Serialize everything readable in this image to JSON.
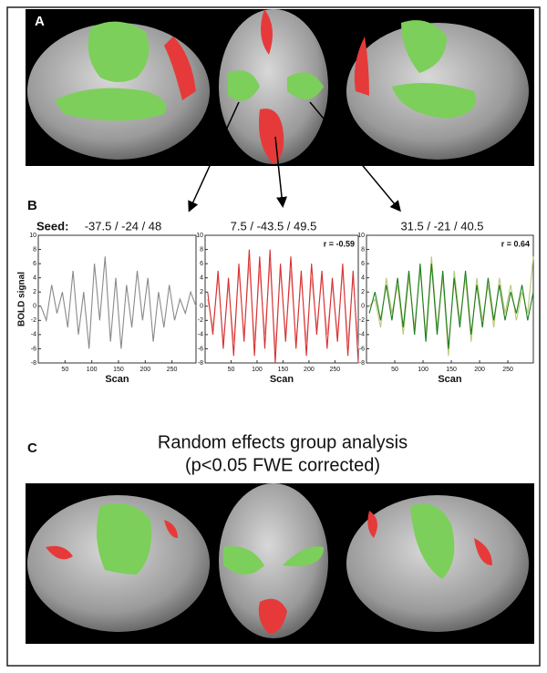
{
  "labels": [
    "A",
    "B",
    "C"
  ],
  "seed_prefix": "Seed:",
  "panel_c_title": [
    "Random effects group analysis",
    "(p<0.05 FWE corrected)"
  ],
  "chart_data": [
    {
      "type": "line",
      "title": "-37.5 / -24 / 48",
      "ylabel": "BOLD signal",
      "xlabel": "Scan",
      "x": [
        5,
        15,
        25,
        35,
        45,
        55,
        65,
        75,
        85,
        95,
        105,
        115,
        125,
        135,
        145,
        155,
        165,
        175,
        185,
        195,
        205,
        215,
        225,
        235,
        245,
        255,
        265,
        275,
        285,
        295
      ],
      "series": [
        {
          "color": "#8a8a8a",
          "values": [
            0,
            -2,
            3,
            -1,
            2,
            -3,
            5,
            -4,
            2,
            -6,
            6,
            -2,
            7,
            -5,
            4,
            -6,
            3,
            -3,
            5,
            -2,
            4,
            -5,
            2,
            -3,
            3,
            -2,
            1,
            -1,
            2,
            0
          ]
        }
      ],
      "xlim": [
        0,
        295
      ],
      "ylim": [
        -8,
        10
      ],
      "xticks": [
        50,
        100,
        150,
        200,
        250
      ],
      "yticks": [
        -8,
        -6,
        -4,
        -2,
        0,
        2,
        4,
        6,
        8,
        10
      ]
    },
    {
      "type": "line",
      "title": "7.5 / -43.5 / 49.5",
      "annotation": "r = -0.59",
      "xlabel": "Scan",
      "x": [
        5,
        15,
        25,
        35,
        45,
        55,
        65,
        75,
        85,
        95,
        105,
        115,
        125,
        135,
        145,
        155,
        165,
        175,
        185,
        195,
        205,
        215,
        225,
        235,
        245,
        255,
        265,
        275,
        285,
        295
      ],
      "series": [
        {
          "color": "#f2a8a8",
          "values": [
            1,
            -3,
            4,
            -5,
            3,
            -5,
            5,
            -4,
            6,
            -5,
            5,
            -4,
            6,
            -6,
            5,
            -4,
            5,
            -5,
            4,
            -5,
            4,
            -3,
            4,
            -4,
            3,
            -4,
            5,
            -5,
            4,
            -6
          ]
        },
        {
          "color": "#d83030",
          "values": [
            2,
            -4,
            5,
            -6,
            4,
            -7,
            6,
            -5,
            8,
            -7,
            7,
            -6,
            8,
            -8,
            6,
            -5,
            7,
            -6,
            5,
            -7,
            6,
            -4,
            5,
            -6,
            4,
            -5,
            6,
            -7,
            5,
            -8
          ]
        }
      ],
      "xlim": [
        0,
        295
      ],
      "ylim": [
        -8,
        10
      ],
      "xticks": [
        50,
        100,
        150,
        200,
        250
      ],
      "yticks": [
        -8,
        -6,
        -4,
        -2,
        0,
        2,
        4,
        6,
        8,
        10
      ]
    },
    {
      "type": "line",
      "title": "31.5 / -21 / 40.5",
      "annotation": "r = 0.64",
      "xlabel": "Scan",
      "x": [
        5,
        15,
        25,
        35,
        45,
        55,
        65,
        75,
        85,
        95,
        105,
        115,
        125,
        135,
        145,
        155,
        165,
        175,
        185,
        195,
        205,
        215,
        225,
        235,
        245,
        255,
        265,
        275,
        285,
        295
      ],
      "series": [
        {
          "color": "#bcc878",
          "values": [
            0,
            1,
            -3,
            4,
            -1,
            3,
            -4,
            4,
            -3,
            5,
            -4,
            7,
            -3,
            4,
            -7,
            5,
            -2,
            4,
            -5,
            4,
            -2,
            3,
            -3,
            4,
            -1,
            3,
            -2,
            2,
            -1,
            7
          ]
        },
        {
          "color": "#1d7d1d",
          "values": [
            -1,
            2,
            -2,
            3,
            -2,
            4,
            -3,
            5,
            -4,
            6,
            -5,
            6,
            -4,
            5,
            -6,
            4,
            -3,
            5,
            -4,
            3,
            -3,
            4,
            -2,
            3,
            -2,
            2,
            -1,
            3,
            -2,
            2
          ]
        }
      ],
      "xlim": [
        0,
        295
      ],
      "ylim": [
        -8,
        10
      ],
      "xticks": [
        50,
        100,
        150,
        200,
        250
      ],
      "yticks": [
        -8,
        -6,
        -4,
        -2,
        0,
        2,
        4,
        6,
        8,
        10
      ]
    }
  ]
}
